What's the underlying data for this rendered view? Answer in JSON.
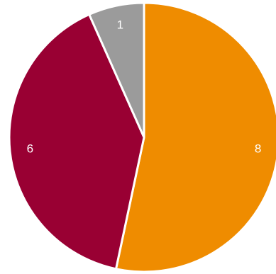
{
  "chart_data": {
    "type": "pie",
    "start_angle_deg": 0,
    "direction": "clockwise",
    "slices": [
      {
        "value": 8,
        "label": "8",
        "color": "#EF8C00"
      },
      {
        "value": 6,
        "label": "6",
        "color": "#990033"
      },
      {
        "value": 1,
        "label": "1",
        "color": "#9B9B9B"
      }
    ]
  }
}
